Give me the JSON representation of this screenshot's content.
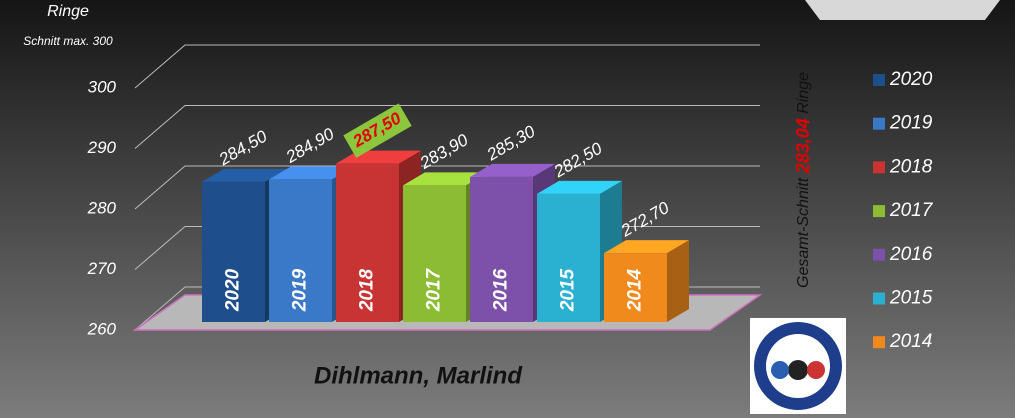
{
  "chart_data": {
    "type": "bar3d",
    "axis_title": "Ringe",
    "axis_subtitle": "Schnitt max. 300",
    "title": "Dihlmann, Marlind",
    "annotation": [
      "Gesamt-Schnitt ",
      "283,04",
      " Ringe"
    ],
    "categories": [
      "2020",
      "2019",
      "2018",
      "2017",
      "2016",
      "2015",
      "2014"
    ],
    "values": [
      284.5,
      284.9,
      287.5,
      283.9,
      285.3,
      282.5,
      272.7
    ],
    "value_labels": [
      "284,50",
      "284,90",
      "287,50",
      "283,90",
      "285,30",
      "282,50",
      "272,70"
    ],
    "colors": [
      "#1f4e8c",
      "#3a78c8",
      "#c83434",
      "#8cbc34",
      "#7d50aa",
      "#2ab0d0",
      "#f08a1c"
    ],
    "highlight_index": 2,
    "ylim": [
      260,
      300
    ],
    "yticks": [
      260,
      270,
      280,
      290,
      300
    ],
    "grid": true,
    "legend": "right"
  }
}
